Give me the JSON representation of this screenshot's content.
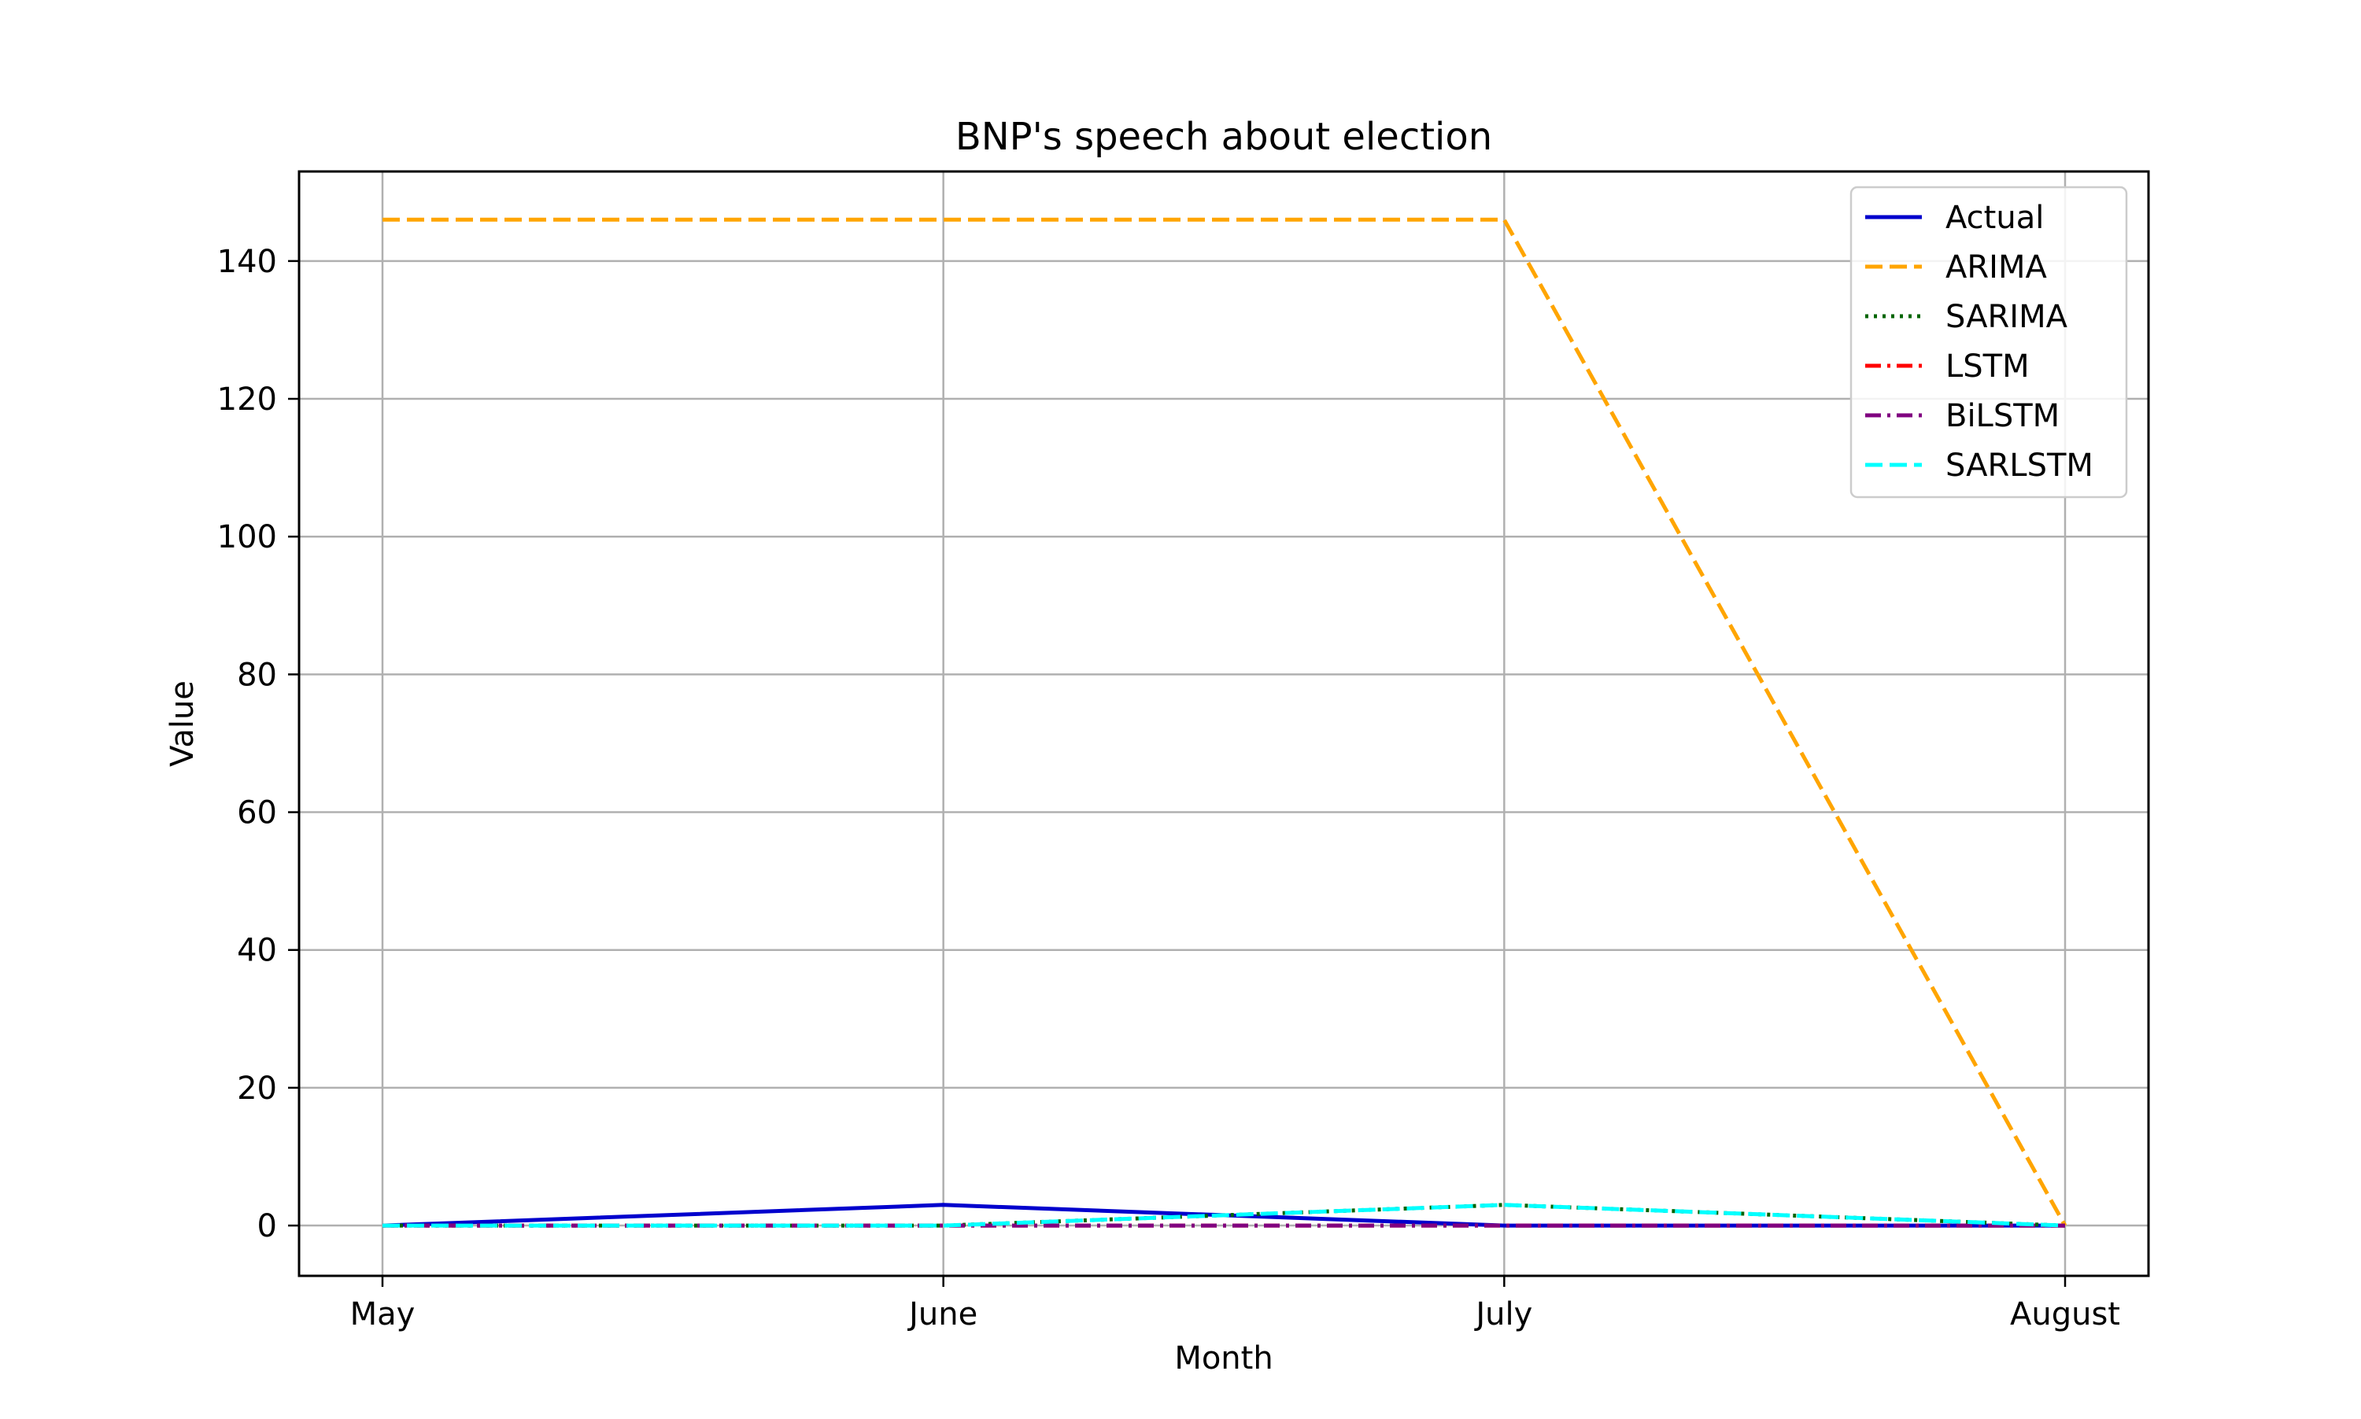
{
  "chart_data": {
    "type": "line",
    "title": "BNP's speech about election",
    "xlabel": "Month",
    "ylabel": "Value",
    "categories": [
      "May",
      "June",
      "July",
      "August"
    ],
    "ylim": [
      -7.3,
      153
    ],
    "yticks": [
      0,
      20,
      40,
      60,
      80,
      100,
      120,
      140
    ],
    "grid": true,
    "legend_position": "top-right",
    "series": [
      {
        "name": "Actual",
        "values": [
          0,
          3,
          0,
          0
        ],
        "color": "#0000cd",
        "dash": "solid"
      },
      {
        "name": "ARIMA",
        "values": [
          146,
          146,
          146,
          0
        ],
        "color": "#ffa500",
        "dash": "dashed"
      },
      {
        "name": "SARIMA",
        "values": [
          0,
          0,
          3,
          0
        ],
        "color": "#006400",
        "dash": "dotted"
      },
      {
        "name": "LSTM",
        "values": [
          0,
          0,
          0,
          0
        ],
        "color": "#ff0000",
        "dash": "dashdot"
      },
      {
        "name": "BiLSTM",
        "values": [
          0,
          0,
          0,
          0
        ],
        "color": "#800080",
        "dash": "dashdot"
      },
      {
        "name": "SARLSTM",
        "values": [
          0,
          0,
          3,
          0
        ],
        "color": "#00ffff",
        "dash": "dashed"
      }
    ]
  }
}
